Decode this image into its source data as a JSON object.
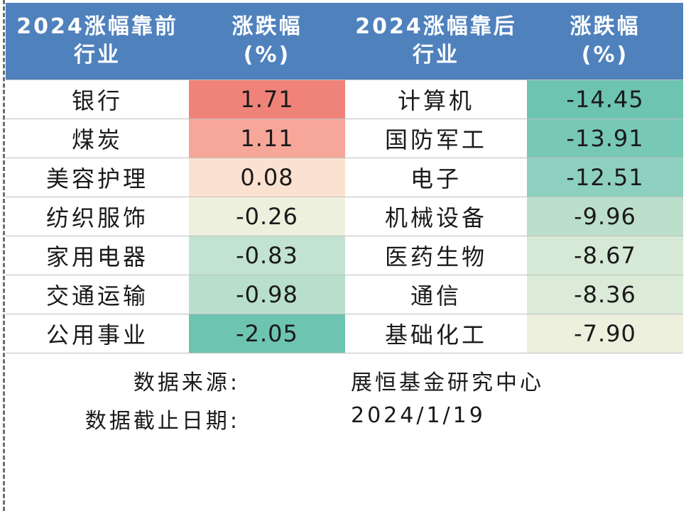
{
  "chart_data": {
    "type": "table",
    "headers": {
      "top_industry": [
        "2024涨幅靠前",
        "行业"
      ],
      "top_change": [
        "涨跌幅",
        "(%)"
      ],
      "bottom_industry": [
        "2024涨幅靠后",
        "行业"
      ],
      "bottom_change": [
        "涨跌幅",
        "(%)"
      ]
    },
    "top": [
      {
        "industry": "银行",
        "change": "1.71",
        "value": 1.71,
        "color": "#f08379"
      },
      {
        "industry": "煤炭",
        "change": "1.11",
        "value": 1.11,
        "color": "#f6a79a"
      },
      {
        "industry": "美容护理",
        "change": "0.08",
        "value": 0.08,
        "color": "#fbe1d0"
      },
      {
        "industry": "纺织服饰",
        "change": "-0.26",
        "value": -0.26,
        "color": "#eef0de"
      },
      {
        "industry": "家用电器",
        "change": "-0.83",
        "value": -0.83,
        "color": "#c2e3d2"
      },
      {
        "industry": "交通运输",
        "change": "-0.98",
        "value": -0.98,
        "color": "#b8dfcc"
      },
      {
        "industry": "公用事业",
        "change": "-2.05",
        "value": -2.05,
        "color": "#6cc4b1"
      }
    ],
    "bottom": [
      {
        "industry": "计算机",
        "change": "-14.45",
        "value": -14.45,
        "color": "#6cc4b1"
      },
      {
        "industry": "国防军工",
        "change": "-13.91",
        "value": -13.91,
        "color": "#78c8b6"
      },
      {
        "industry": "电子",
        "change": "-12.51",
        "value": -12.51,
        "color": "#8ed0bf"
      },
      {
        "industry": "机械设备",
        "change": "-9.96",
        "value": -9.96,
        "color": "#bcdfcc"
      },
      {
        "industry": "医药生物",
        "change": "-8.67",
        "value": -8.67,
        "color": "#d6e9d6"
      },
      {
        "industry": "通信",
        "change": "-8.36",
        "value": -8.36,
        "color": "#dcebd8"
      },
      {
        "industry": "基础化工",
        "change": "-7.90",
        "value": -7.9,
        "color": "#eef0de"
      }
    ]
  },
  "footer": {
    "source_label": "数据来源:",
    "source_value": "展恒基金研究中心",
    "date_label": "数据截止日期:",
    "date_value": "2024/1/19"
  }
}
